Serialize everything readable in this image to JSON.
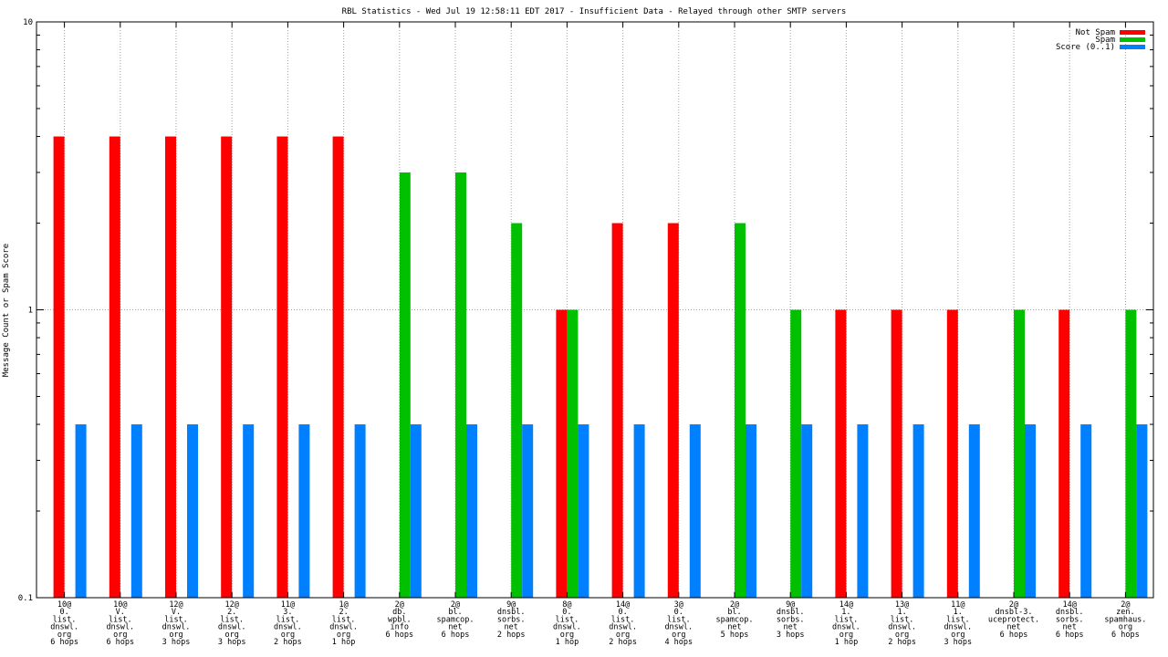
{
  "chart_data": {
    "type": "bar",
    "title": "RBL Statistics - Wed Jul 19 12:58:11 EDT 2017 - Insufficient Data - Relayed through other SMTP servers",
    "ylabel": "Message Count or Spam Score",
    "xlabel": "",
    "yscale": "log",
    "ylim": [
      0.1,
      10
    ],
    "yticks": [
      "0.1",
      "1",
      "10"
    ],
    "grid": "vertical per category + horizontal at 1",
    "legend_position": "top-right",
    "categories": [
      [
        "10@",
        "0.",
        "list.",
        "dnswl.",
        "org",
        "6 hops"
      ],
      [
        "10@",
        "V.",
        "list.",
        "dnswl.",
        "org",
        "6 hops"
      ],
      [
        "12@",
        "V.",
        "list.",
        "dnswl.",
        "org",
        "3 hops"
      ],
      [
        "12@",
        "2.",
        "list.",
        "dnswl.",
        "org",
        "3 hops"
      ],
      [
        "11@",
        "3.",
        "list.",
        "dnswl.",
        "org",
        "2 hops"
      ],
      [
        "1@",
        "2.",
        "list.",
        "dnswl.",
        "org",
        "1 hop"
      ],
      [
        "2@",
        "db.",
        "wpbl.",
        "info",
        "6 hops"
      ],
      [
        "2@",
        "bl.",
        "spamcop.",
        "net",
        "6 hops"
      ],
      [
        "9@",
        "dnsbl.",
        "sorbs.",
        "net",
        "2 hops"
      ],
      [
        "8@",
        "0.",
        "list.",
        "dnswl.",
        "org",
        "1 hop"
      ],
      [
        "14@",
        "0.",
        "list.",
        "dnswl.",
        "org",
        "2 hops"
      ],
      [
        "3@",
        "0.",
        "list.",
        "dnswl.",
        "org",
        "4 hops"
      ],
      [
        "2@",
        "bl.",
        "spamcop.",
        "net",
        "5 hops"
      ],
      [
        "9@",
        "dnsbl.",
        "sorbs.",
        "net",
        "3 hops"
      ],
      [
        "14@",
        "1.",
        "list.",
        "dnswl.",
        "org",
        "1 hop"
      ],
      [
        "13@",
        "1.",
        "list.",
        "dnswl.",
        "org",
        "2 hops"
      ],
      [
        "11@",
        "1.",
        "list.",
        "dnswl.",
        "org",
        "3 hops"
      ],
      [
        "2@",
        "dnsbl-3.",
        "uceprotect.",
        "net",
        "6 hops"
      ],
      [
        "14@",
        "dnsbl.",
        "sorbs.",
        "net",
        "6 hops"
      ],
      [
        "2@",
        "zen.",
        "spamhaus.",
        "org",
        "6 hops"
      ]
    ],
    "series": [
      {
        "name": "Not Spam",
        "color": "#ff0000",
        "values": [
          4,
          4,
          4,
          4,
          4,
          4,
          0,
          0,
          0,
          1,
          2,
          2,
          0,
          0,
          1,
          1,
          1,
          0,
          1,
          0
        ]
      },
      {
        "name": "Spam",
        "color": "#00c000",
        "values": [
          0,
          0,
          0,
          0,
          0,
          0,
          3,
          3,
          2,
          1,
          0,
          0,
          2,
          1,
          0,
          0,
          0,
          1,
          0,
          1
        ]
      },
      {
        "name": "Score (0..1)",
        "color": "#0080ff",
        "values": [
          0.4,
          0.4,
          0.4,
          0.4,
          0.4,
          0.4,
          0.4,
          0.4,
          0.4,
          0.4,
          0.4,
          0.4,
          0.4,
          0.4,
          0.4,
          0.4,
          0.4,
          0.4,
          0.4,
          0.4
        ]
      }
    ]
  }
}
